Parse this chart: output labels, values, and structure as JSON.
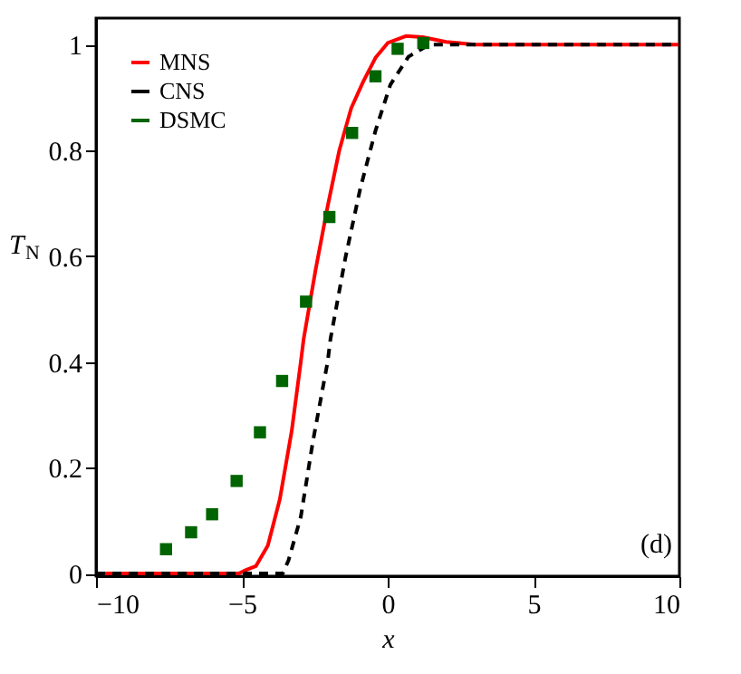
{
  "chart_data": {
    "type": "line",
    "xlabel": "x",
    "ylabel": "T$_{N}$",
    "xlim": [
      -10,
      10
    ],
    "ylim": [
      -0.005,
      1.05
    ],
    "xticks": [
      -10,
      -5,
      0,
      5,
      10
    ],
    "yticks": [
      0,
      0.2,
      0.4,
      0.6,
      0.8,
      1
    ],
    "grid": false,
    "legend": "top left",
    "series": [
      {
        "name": "MNS",
        "color": "#ff0000",
        "line_style": "solid",
        "x": [
          -10,
          -5.1,
          -4.93,
          -4.52,
          -4.11,
          -3.7,
          -3.29,
          -2.98,
          -2.88,
          -2.47,
          -2.06,
          -1.66,
          -1.25,
          -0.84,
          -0.42,
          0,
          0.62,
          1.2,
          2,
          3,
          10
        ],
        "values": [
          0,
          0,
          0.005,
          0.014,
          0.053,
          0.14,
          0.27,
          0.4,
          0.444,
          0.575,
          0.694,
          0.8,
          0.88,
          0.93,
          0.975,
          1.003,
          1.016,
          1.014,
          1.005,
          1,
          1
        ]
      },
      {
        "name": "CNS",
        "color": "#000000",
        "line_style": "dashed",
        "x": [
          -10,
          -3.6,
          -3.4,
          -2.98,
          -2.57,
          -2.06,
          -1.96,
          -1.45,
          -0.94,
          -0.42,
          0.09,
          0.71,
          1.43,
          10
        ],
        "values": [
          0,
          0,
          0.025,
          0.107,
          0.248,
          0.4,
          0.444,
          0.597,
          0.728,
          0.837,
          0.924,
          0.977,
          1,
          1
        ]
      },
      {
        "name": "DSMC",
        "color": "#006400",
        "type": "scatter",
        "marker": "square",
        "x": [
          -7.6,
          -6.74,
          -6.02,
          -5.18,
          -4.38,
          -3.62,
          -2.8,
          -2.0,
          -1.22,
          -0.42,
          0.34,
          1.22
        ],
        "values": [
          0.046,
          0.078,
          0.112,
          0.175,
          0.267,
          0.364,
          0.514,
          0.674,
          0.833,
          0.94,
          0.992,
          1.003
        ]
      }
    ],
    "annotations": [
      "(d)"
    ]
  }
}
